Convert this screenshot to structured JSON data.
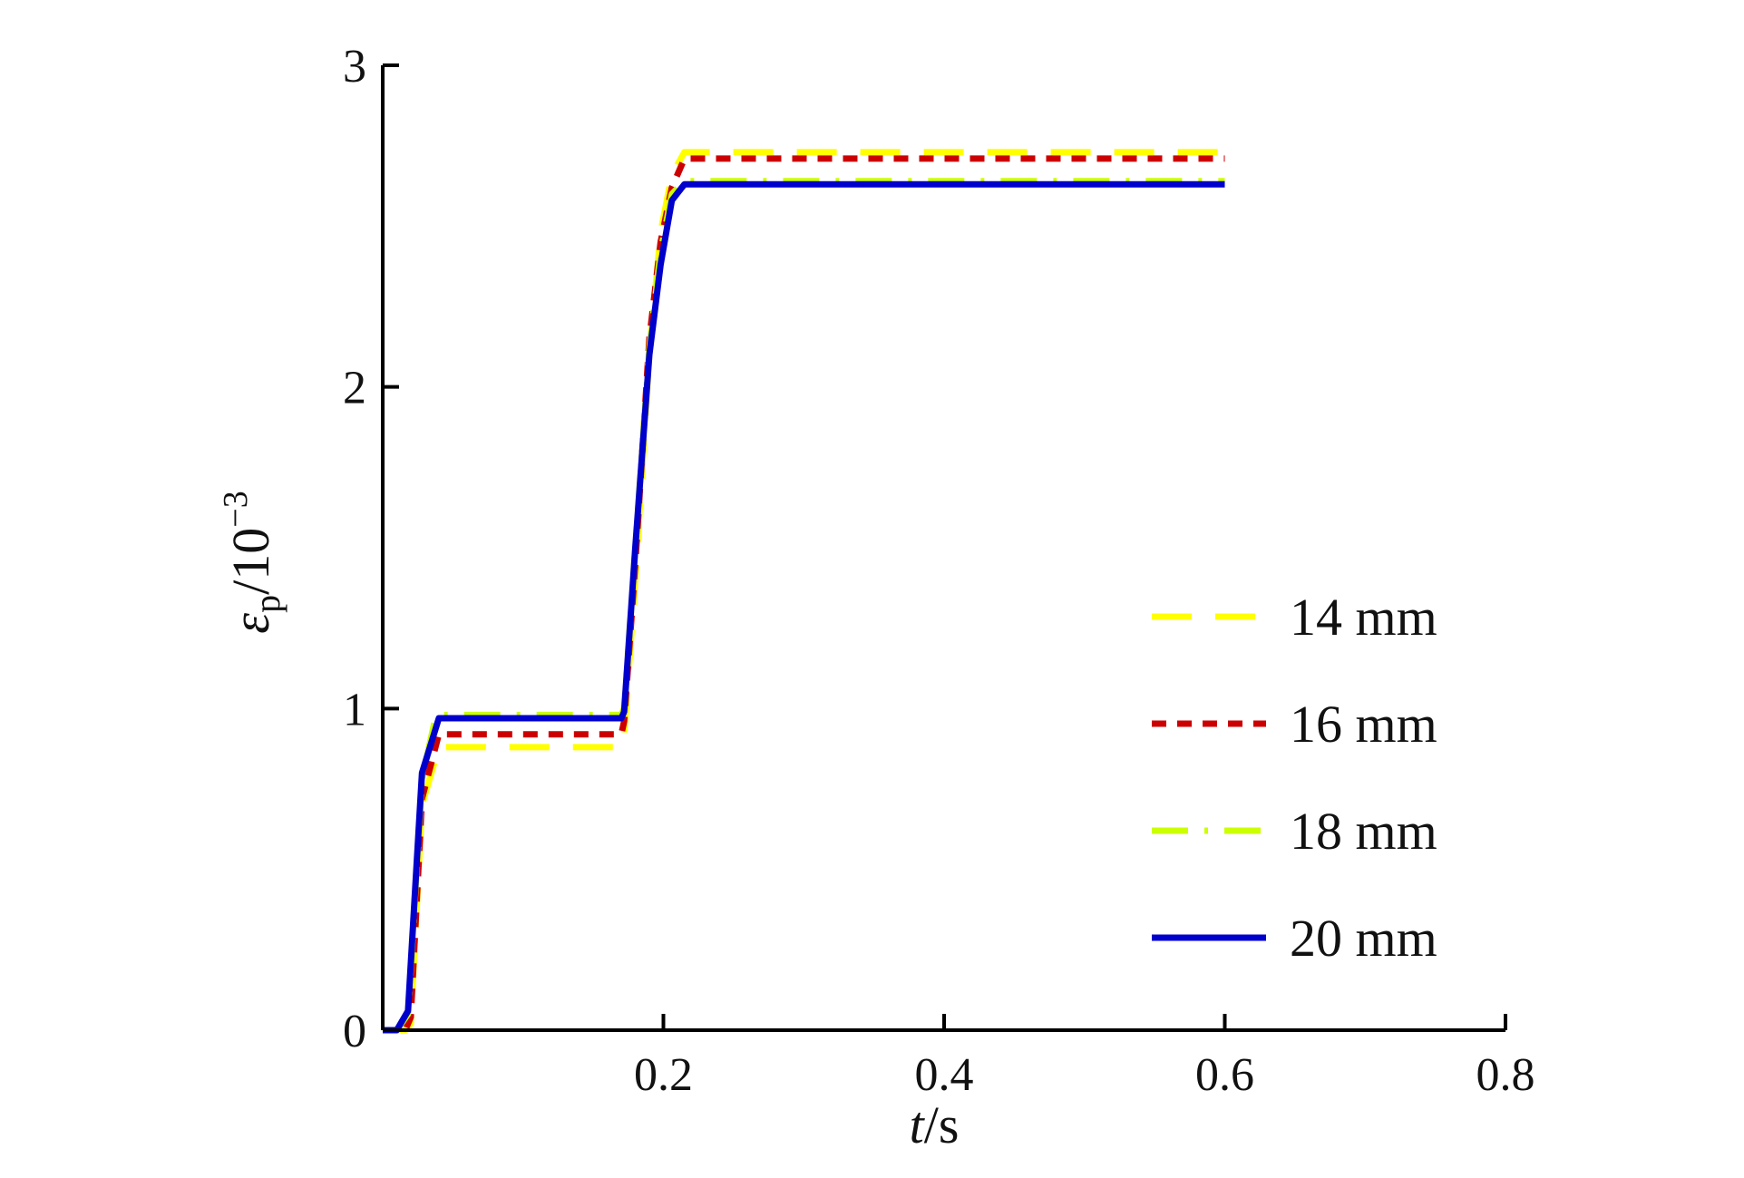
{
  "chart_data": {
    "type": "line",
    "x_axis": {
      "label_main": "t",
      "label_unit": "/s",
      "range": [
        0,
        0.8
      ],
      "ticks": [
        0,
        0.2,
        0.4,
        0.6,
        0.8
      ],
      "tick_labels": [
        "",
        "0.2",
        "0.4",
        "0.6",
        "0.8"
      ]
    },
    "y_axis": {
      "label_symbol": "ε",
      "label_subscript": "p",
      "label_mid": "/10",
      "label_superscript": "−3",
      "range": [
        0,
        3
      ],
      "ticks": [
        0,
        1,
        2,
        3
      ],
      "tick_labels": [
        "0",
        "1",
        "2",
        "3"
      ]
    },
    "grid": false,
    "legend_position": "center-right",
    "series": [
      {
        "name": "14 mm",
        "color": "#ffff00",
        "dash": "long-dash",
        "x": [
          0,
          0.016,
          0.02,
          0.028,
          0.04,
          0.17,
          0.172,
          0.18,
          0.19,
          0.198,
          0.206,
          0.215,
          0.6
        ],
        "y": [
          0,
          0,
          0.02,
          0.7,
          0.88,
          0.88,
          0.92,
          1.4,
          2.1,
          2.48,
          2.66,
          2.73,
          2.73
        ]
      },
      {
        "name": "16 mm",
        "color": "#cc0000",
        "dash": "short-dash",
        "x": [
          0,
          0.016,
          0.02,
          0.028,
          0.04,
          0.17,
          0.172,
          0.18,
          0.19,
          0.198,
          0.206,
          0.215,
          0.6
        ],
        "y": [
          0,
          0,
          0.04,
          0.72,
          0.92,
          0.92,
          0.96,
          1.45,
          2.15,
          2.45,
          2.62,
          2.71,
          2.71
        ]
      },
      {
        "name": "18 mm",
        "color": "#ccff00",
        "dash": "dash-dot",
        "x": [
          0,
          0.01,
          0.018,
          0.028,
          0.038,
          0.17,
          0.172,
          0.18,
          0.19,
          0.198,
          0.206,
          0.215,
          0.6
        ],
        "y": [
          0,
          0,
          0.05,
          0.78,
          0.98,
          0.98,
          1.0,
          1.5,
          2.12,
          2.42,
          2.6,
          2.64,
          2.64
        ]
      },
      {
        "name": "20 mm",
        "color": "#0000cc",
        "dash": "solid",
        "x": [
          0,
          0.01,
          0.018,
          0.028,
          0.04,
          0.17,
          0.172,
          0.18,
          0.19,
          0.198,
          0.206,
          0.215,
          0.6
        ],
        "y": [
          0,
          0,
          0.06,
          0.8,
          0.97,
          0.97,
          0.99,
          1.5,
          2.1,
          2.38,
          2.58,
          2.63,
          2.63
        ]
      }
    ]
  }
}
